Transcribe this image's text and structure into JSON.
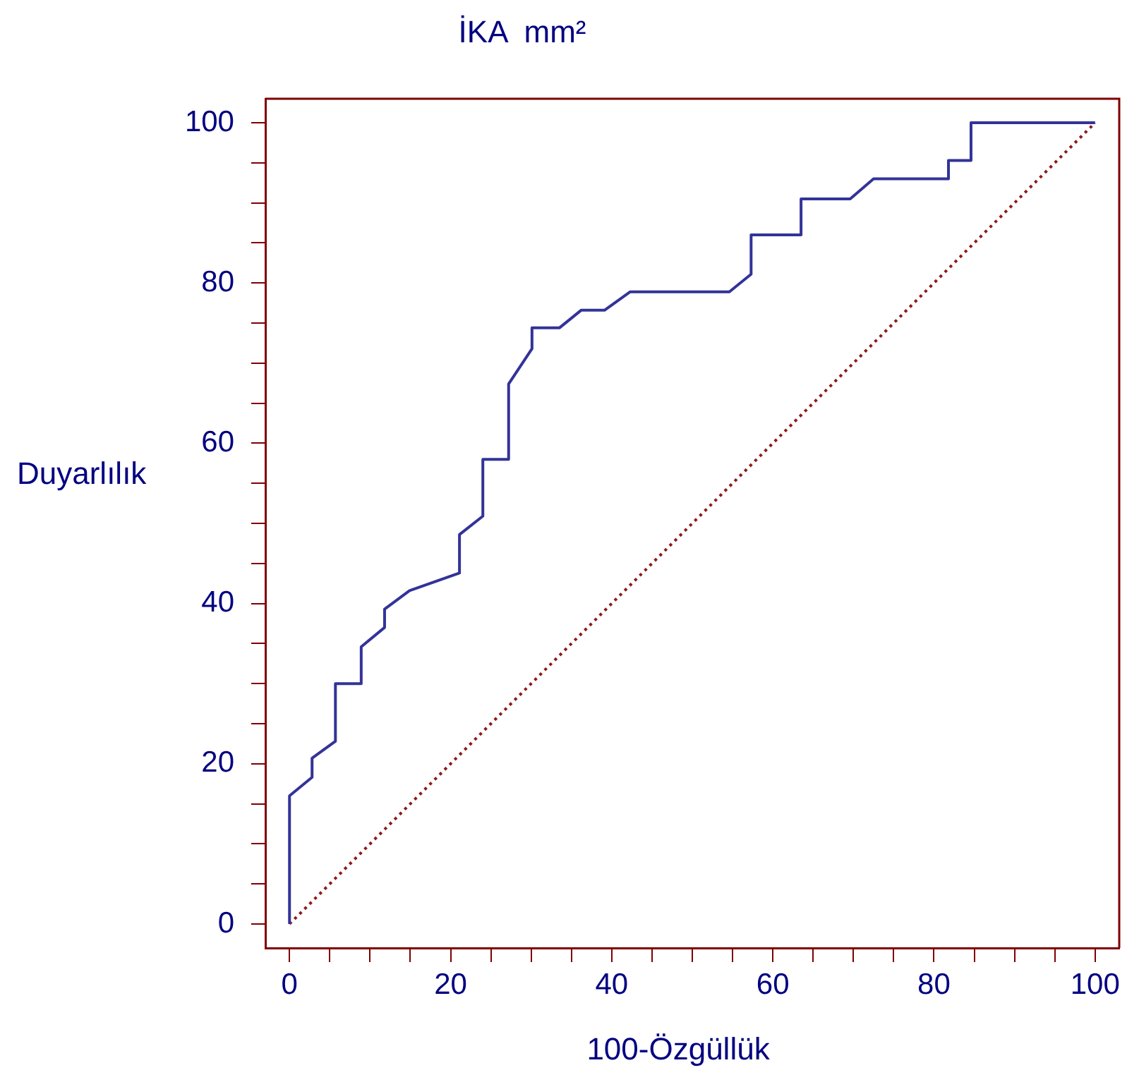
{
  "chart_data": {
    "type": "line",
    "title": "İKA  mm²",
    "xlabel": "100-Özgüllük",
    "ylabel": "Duyarlılık",
    "grid": false,
    "legend": false,
    "marker": "none",
    "xlim": [
      -3,
      103
    ],
    "ylim": [
      -3,
      103
    ],
    "xticks": [
      0,
      {
        "value": 5,
        "label": null
      },
      {
        "value": 10,
        "label": null
      },
      {
        "value": 15,
        "label": null
      },
      20,
      {
        "value": 25,
        "label": null
      },
      {
        "value": 30,
        "label": null
      },
      {
        "value": 35,
        "label": null
      },
      40,
      {
        "value": 45,
        "label": null
      },
      {
        "value": 50,
        "label": null
      },
      {
        "value": 55,
        "label": null
      },
      60,
      {
        "value": 65,
        "label": null
      },
      {
        "value": 70,
        "label": null
      },
      {
        "value": 75,
        "label": null
      },
      80,
      {
        "value": 85,
        "label": null
      },
      {
        "value": 90,
        "label": null
      },
      {
        "value": 95,
        "label": null
      },
      100
    ],
    "yticks": [
      0,
      {
        "value": 5,
        "label": null
      },
      {
        "value": 10,
        "label": null
      },
      {
        "value": 15,
        "label": null
      },
      20,
      {
        "value": 25,
        "label": null
      },
      {
        "value": 30,
        "label": null
      },
      {
        "value": 35,
        "label": null
      },
      40,
      {
        "value": 45,
        "label": null
      },
      {
        "value": 50,
        "label": null
      },
      {
        "value": 55,
        "label": null
      },
      60,
      {
        "value": 65,
        "label": null
      },
      {
        "value": 70,
        "label": null
      },
      {
        "value": 75,
        "label": null
      },
      80,
      {
        "value": 85,
        "label": null
      },
      {
        "value": 90,
        "label": null
      },
      {
        "value": 95,
        "label": null
      },
      100
    ],
    "series": [
      {
        "color": "#333399",
        "line_style": "solid",
        "x": [
          0,
          0,
          2.8,
          2.8,
          5.7,
          5.7,
          8.9,
          8.9,
          11.8,
          11.8,
          14.9,
          21.1,
          21.1,
          24.0,
          24.0,
          27.2,
          27.2,
          30.1,
          30.1,
          33.5,
          36.2,
          39.1,
          42.3,
          54.6,
          57.3,
          57.3,
          63.5,
          63.5,
          69.6,
          72.5,
          81.8,
          81.8,
          84.6,
          84.6,
          100
        ],
        "values": [
          0,
          16,
          18.3,
          20.7,
          22.8,
          30,
          30,
          34.6,
          37,
          39.3,
          41.6,
          43.8,
          48.6,
          50.9,
          58,
          58,
          67.4,
          71.8,
          74.4,
          74.4,
          76.6,
          76.6,
          78.9,
          78.9,
          81.1,
          86,
          86,
          90.5,
          90.5,
          93,
          93,
          95.3,
          95.3,
          100,
          100
        ]
      },
      {
        "color": "#8b1a1a",
        "line_style": "dotted",
        "x": [
          0,
          100
        ],
        "values": [
          0,
          100
        ]
      }
    ]
  }
}
